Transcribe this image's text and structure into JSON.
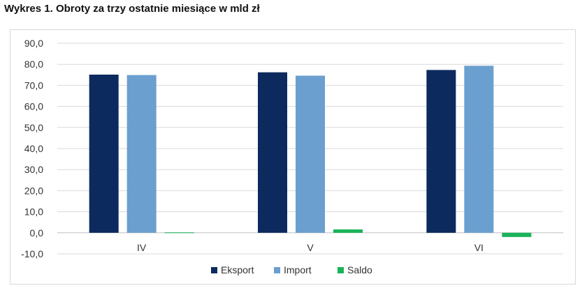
{
  "title": "Wykres 1. Obroty za trzy ostatnie miesiące w mld zł",
  "colors": {
    "Eksport": "#0d2a5e",
    "Import": "#6a9fd0",
    "Saldo": "#19b35a"
  },
  "chart_data": {
    "type": "bar",
    "title": "Wykres 1. Obroty za trzy ostatnie miesiące w mld zł",
    "xlabel": "",
    "ylabel": "",
    "ylim": [
      -10,
      90
    ],
    "yticks": [
      "90,0",
      "80,0",
      "70,0",
      "60,0",
      "50,0",
      "40,0",
      "30,0",
      "20,0",
      "10,0",
      "0,0",
      "-10,0"
    ],
    "categories": [
      "IV",
      "V",
      "VI"
    ],
    "series": [
      {
        "name": "Eksport",
        "values": [
          75.1,
          76.2,
          77.3
        ]
      },
      {
        "name": "Import",
        "values": [
          74.9,
          74.6,
          79.3
        ]
      },
      {
        "name": "Saldo",
        "values": [
          0.2,
          1.6,
          -2.0
        ]
      }
    ],
    "grid": true,
    "legend": "bottom"
  }
}
